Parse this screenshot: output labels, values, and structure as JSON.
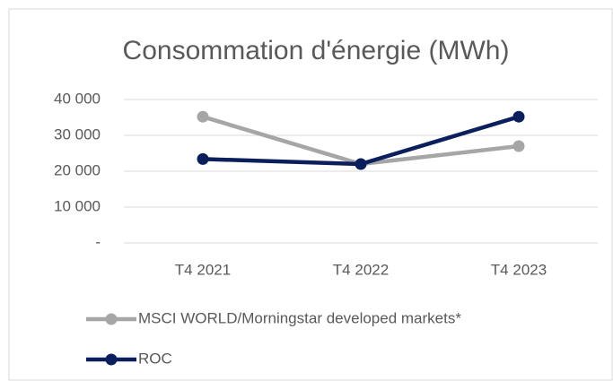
{
  "chart_data": {
    "type": "line",
    "title": "Consommation d'énergie (MWh)",
    "categories": [
      "T4 2021",
      "T4 2022",
      "T4 2023"
    ],
    "series": [
      {
        "name": "MSCI WORLD/Morningstar developed markets*",
        "color": "#a6a6a6",
        "values": [
          35200,
          22000,
          27000
        ]
      },
      {
        "name": "ROC",
        "color": "#0b1f5c",
        "values": [
          23400,
          22000,
          35200
        ]
      }
    ],
    "ylim": [
      0,
      40000
    ],
    "yticks": [
      {
        "value": 0,
        "label": "-"
      },
      {
        "value": 10000,
        "label": "10 000"
      },
      {
        "value": 20000,
        "label": "20 000"
      },
      {
        "value": 30000,
        "label": "30 000"
      },
      {
        "value": 40000,
        "label": "40 000"
      }
    ],
    "grid": true,
    "legend": "bottom"
  }
}
